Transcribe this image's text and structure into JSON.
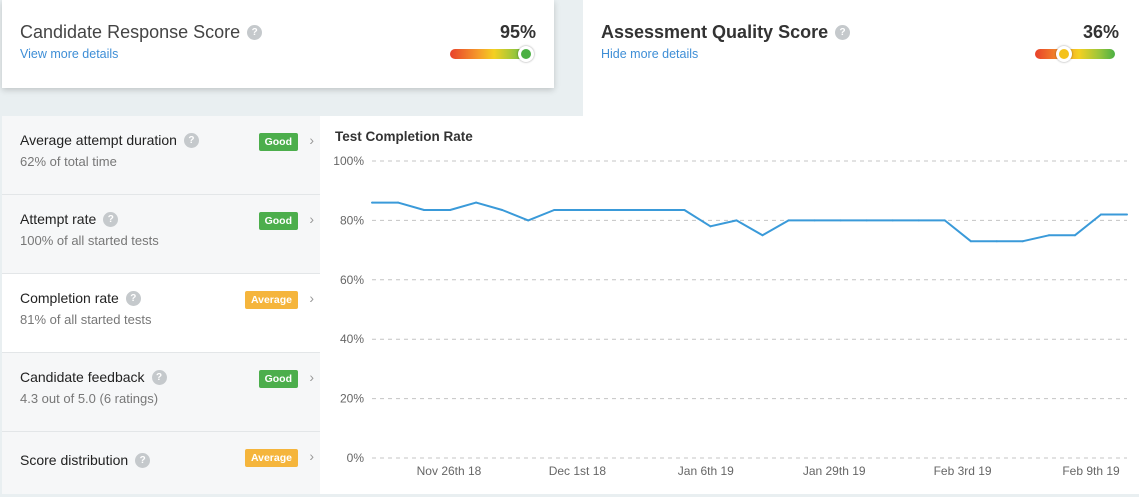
{
  "candidate_response": {
    "title": "Candidate Response Score",
    "link": "View more details",
    "value": "95%",
    "gauge_level": 0.95,
    "knob_color": "#4bb043"
  },
  "assessment_quality": {
    "title": "Assessment Quality Score",
    "link": "Hide more details",
    "value": "36%",
    "gauge_level": 0.36,
    "knob_color": "#f4c21b"
  },
  "help_glyph": "?",
  "chevron_glyph": "›",
  "metrics": [
    {
      "title": "Average attempt duration",
      "sub": "62% of total time",
      "badge": "Good",
      "status": "good"
    },
    {
      "title": "Attempt rate",
      "sub": "100% of all started tests",
      "badge": "Good",
      "status": "good"
    },
    {
      "title": "Completion rate",
      "sub": "81% of all started tests",
      "badge": "Average",
      "status": "average"
    },
    {
      "title": "Candidate feedback",
      "sub": "4.3 out of 5.0 (6 ratings)",
      "badge": "Good",
      "status": "good"
    },
    {
      "title": "Score distribution",
      "sub": "",
      "badge": "Average",
      "status": "average"
    }
  ],
  "colors": {
    "link": "#3e8ed6",
    "good": "#4cae4c",
    "average": "#f5b53c",
    "line": "#3a9ad9"
  },
  "chart_data": {
    "type": "line",
    "title": "Test Completion Rate",
    "ylim": [
      0,
      100
    ],
    "y_ticks": [
      "0%",
      "20%",
      "40%",
      "60%",
      "80%",
      "100%"
    ],
    "x_ticks": [
      "Nov 26th 18",
      "Dec 1st 18",
      "Jan 6th 19",
      "Jan 29th 19",
      "Feb 3rd 19",
      "Feb 9th 19"
    ],
    "grid": true,
    "series": [
      {
        "values": [
          86,
          86,
          83.5,
          83.5,
          86,
          83.5,
          80,
          83.5,
          83.5,
          83.5,
          83.5,
          83.5,
          83.5,
          78,
          80,
          75,
          80,
          80,
          80,
          80,
          80,
          80,
          80,
          73,
          73,
          73,
          75,
          75,
          82,
          82
        ]
      }
    ]
  }
}
